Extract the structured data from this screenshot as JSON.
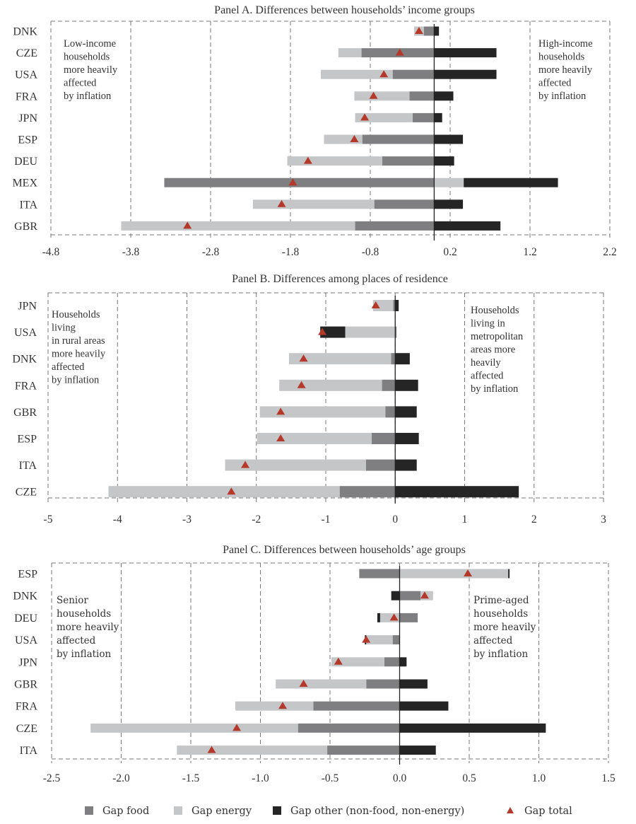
{
  "colors": {
    "food": "#7f7f81",
    "energy": "#c5c6c8",
    "other": "#252525",
    "total": "#b5392a",
    "zero_line": "#222222"
  },
  "legend": [
    {
      "key": "food",
      "label": "Gap food"
    },
    {
      "key": "energy",
      "label": "Gap energy"
    },
    {
      "key": "other",
      "label": "Gap other (non-food, non-energy)"
    },
    {
      "key": "total",
      "label": "Gap total"
    }
  ],
  "chart_data": [
    {
      "type": "bar",
      "stacked": true,
      "orientation": "horizontal",
      "title": "Panel A. Differences between households’ income groups",
      "xlim": [
        -4.8,
        2.2
      ],
      "xticks": [
        -4.8,
        -3.8,
        -2.8,
        -1.8,
        -0.8,
        0.2,
        1.2,
        2.2
      ],
      "tick_labels": [
        "-4.8",
        "-3.8",
        "-2.8",
        "-1.8",
        "-0.8",
        "0.2",
        "1.2",
        "2.2"
      ],
      "grid": true,
      "annotation_left": [
        "Low-income",
        "households",
        "more heavily",
        "affected",
        "by inflation"
      ],
      "annotation_right": [
        "High-income",
        "households",
        "more heavily",
        "affected",
        "by inflation"
      ],
      "categories": [
        "DNK",
        "CZE",
        "USA",
        "FRA",
        "JPN",
        "ESP",
        "DEU",
        "MEX",
        "ITA",
        "GBR"
      ],
      "series": [
        {
          "name": "Gap food",
          "key": "food",
          "values": [
            -0.13,
            -0.91,
            -0.52,
            -0.31,
            -0.27,
            -0.9,
            -0.65,
            -3.38,
            -0.75,
            -0.99
          ]
        },
        {
          "name": "Gap energy",
          "key": "energy",
          "values": [
            -0.12,
            -0.29,
            -0.9,
            -0.69,
            -0.72,
            -0.48,
            -1.19,
            0.37,
            -1.52,
            -2.93
          ]
        },
        {
          "name": "Gap other (non-food, non-energy)",
          "key": "other",
          "values": [
            0.06,
            0.78,
            0.78,
            0.24,
            0.1,
            0.36,
            0.25,
            1.18,
            0.36,
            0.83
          ]
        },
        {
          "name": "Gap total",
          "key": "total",
          "values": [
            -0.19,
            -0.43,
            -0.63,
            -0.76,
            -0.87,
            -1.0,
            -1.58,
            -1.77,
            -1.91,
            -3.09
          ]
        }
      ]
    },
    {
      "type": "bar",
      "stacked": true,
      "orientation": "horizontal",
      "title": "Panel B. Differences among places of residence",
      "xlim": [
        -5,
        3
      ],
      "xticks": [
        -5,
        -4,
        -3,
        -2,
        -1,
        0,
        1,
        2,
        3
      ],
      "tick_labels": [
        "-5",
        "-4",
        "-3",
        "-2",
        "-1",
        "0",
        "1",
        "2",
        "3"
      ],
      "grid": true,
      "annotation_left": [
        "Households",
        "living",
        "in rural areas",
        "more heavily",
        "affected",
        "by inflation"
      ],
      "annotation_right": [
        "Households",
        "living in",
        "metropolitan",
        "areas more",
        "heavily",
        "affected",
        "by inflation"
      ],
      "categories": [
        "JPN",
        "USA",
        "DNK",
        "FRA",
        "GBR",
        "ESP",
        "ITA",
        "CZE"
      ],
      "series": [
        {
          "name": "Gap food",
          "key": "food",
          "values": [
            -0.03,
            0.02,
            -0.06,
            -0.19,
            -0.14,
            -0.34,
            -0.42,
            -0.8
          ]
        },
        {
          "name": "Gap energy",
          "key": "energy",
          "values": [
            -0.29,
            -0.72,
            -1.47,
            -1.48,
            -1.81,
            -1.65,
            -2.03,
            -3.33
          ]
        },
        {
          "name": "Gap other (non-food, non-energy)",
          "key": "other",
          "values": [
            0.05,
            -0.36,
            0.21,
            0.33,
            0.31,
            0.34,
            0.31,
            1.78
          ]
        },
        {
          "name": "Gap total",
          "key": "total",
          "values": [
            -0.28,
            -1.05,
            -1.32,
            -1.35,
            -1.65,
            -1.65,
            -2.16,
            -2.36
          ]
        }
      ]
    },
    {
      "type": "bar",
      "stacked": true,
      "orientation": "horizontal",
      "title": "Panel C. Differences between households’ age groups",
      "xlim": [
        -2.5,
        1.5
      ],
      "xticks": [
        -2.5,
        -2.0,
        -1.5,
        -1.0,
        -0.5,
        0.0,
        0.5,
        1.0,
        1.5
      ],
      "tick_labels": [
        "-2.5",
        "-2.0",
        "-1.5",
        "-1.0",
        "-0.5",
        "0.0",
        "0.5",
        "1.0",
        "1.5"
      ],
      "grid": true,
      "annotation_left": [
        "Senior",
        "households",
        "more heavily",
        "affected",
        "by inflation"
      ],
      "annotation_right": [
        "Prime-aged",
        "households",
        "more heavily",
        "affected",
        "by inflation"
      ],
      "categories": [
        "ESP",
        "DNK",
        "DEU",
        "USA",
        "JPN",
        "GBR",
        "FRA",
        "CZE",
        "ITA"
      ],
      "series": [
        {
          "name": "Gap food",
          "key": "food",
          "values": [
            -0.29,
            0.15,
            0.13,
            -0.05,
            -0.11,
            -0.24,
            -0.62,
            -0.73,
            -0.52
          ]
        },
        {
          "name": "Gap energy",
          "key": "energy",
          "values": [
            0.78,
            0.09,
            -0.14,
            -0.19,
            -0.38,
            -0.65,
            -0.56,
            -1.49,
            -1.08
          ]
        },
        {
          "name": "Gap other (non-food, non-energy)",
          "key": "other",
          "values": [
            0.01,
            -0.06,
            -0.02,
            -0.01,
            0.05,
            0.2,
            0.35,
            1.05,
            0.26
          ]
        },
        {
          "name": "Gap total",
          "key": "total",
          "values": [
            0.49,
            0.18,
            -0.04,
            -0.24,
            -0.44,
            -0.69,
            -0.84,
            -1.17,
            -1.35
          ]
        }
      ]
    }
  ]
}
